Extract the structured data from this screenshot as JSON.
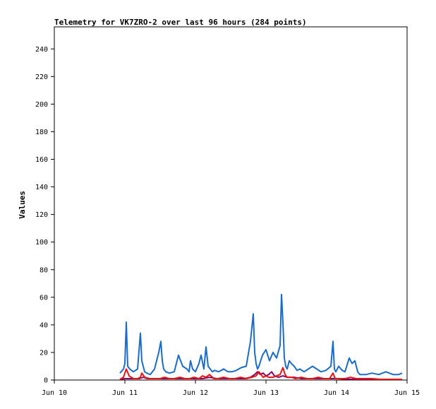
{
  "chart_data": {
    "type": "line",
    "title": "Telemetry for VK7ZRO-2 over last 96 hours (284 points)",
    "xlabel": "",
    "ylabel": "Values",
    "x_ticks": [
      "Jun 10",
      "Jun 11",
      "Jun 12",
      "Jun 13",
      "Jun 14",
      "Jun 15"
    ],
    "xlim_days": [
      10,
      15
    ],
    "ylim": [
      0,
      256
    ],
    "y_ticks": [
      0,
      20,
      40,
      60,
      80,
      100,
      120,
      140,
      160,
      180,
      200,
      220,
      240
    ],
    "grid": false,
    "series": [
      {
        "color": "#1a6ccc",
        "x_days": [
          10.93,
          10.98,
          11.0,
          11.02,
          11.04,
          11.07,
          11.12,
          11.18,
          11.22,
          11.24,
          11.26,
          11.28,
          11.31,
          11.36,
          11.42,
          11.48,
          11.51,
          11.53,
          11.55,
          11.58,
          11.63,
          11.7,
          11.76,
          11.82,
          11.88,
          11.91,
          11.93,
          11.96,
          12.0,
          12.05,
          12.08,
          12.12,
          12.15,
          12.18,
          12.21,
          12.24,
          12.27,
          12.33,
          12.4,
          12.46,
          12.52,
          12.58,
          12.65,
          12.72,
          12.78,
          12.82,
          12.84,
          12.86,
          12.88,
          12.9,
          12.95,
          13.0,
          13.05,
          13.1,
          13.15,
          13.2,
          13.22,
          13.24,
          13.26,
          13.28,
          13.3,
          13.33,
          13.36,
          13.4,
          13.44,
          13.48,
          13.54,
          13.6,
          13.66,
          13.72,
          13.78,
          13.85,
          13.92,
          13.95,
          13.96,
          13.97,
          13.99,
          14.03,
          14.08,
          14.12,
          14.18,
          14.22,
          14.26,
          14.3,
          14.33,
          14.36,
          14.42,
          14.5,
          14.6,
          14.7,
          14.8,
          14.88,
          14.93
        ],
        "values": [
          5,
          8,
          12,
          42,
          10,
          8,
          6,
          8,
          34,
          14,
          10,
          6,
          5,
          4,
          8,
          20,
          28,
          14,
          8,
          6,
          5,
          6,
          18,
          10,
          8,
          6,
          14,
          8,
          6,
          12,
          18,
          8,
          24,
          10,
          8,
          6,
          7,
          6,
          8,
          6,
          6,
          7,
          9,
          10,
          28,
          48,
          20,
          12,
          8,
          10,
          18,
          22,
          14,
          20,
          16,
          25,
          62,
          42,
          16,
          10,
          8,
          14,
          12,
          10,
          7,
          8,
          6,
          8,
          10,
          8,
          6,
          7,
          10,
          28,
          18,
          8,
          6,
          10,
          7,
          6,
          16,
          12,
          14,
          6,
          4,
          4,
          4,
          5,
          4,
          6,
          4,
          4,
          5
        ]
      },
      {
        "color": "#ee1111",
        "x_days": [
          10.93,
          10.98,
          11.0,
          11.02,
          11.06,
          11.12,
          11.18,
          11.22,
          11.24,
          11.28,
          11.35,
          11.42,
          11.5,
          11.56,
          11.63,
          11.7,
          11.78,
          11.85,
          11.92,
          11.98,
          12.05,
          12.1,
          12.15,
          12.2,
          12.26,
          12.32,
          12.4,
          12.48,
          12.56,
          12.64,
          12.72,
          12.8,
          12.86,
          12.9,
          12.96,
          13.0,
          13.04,
          13.1,
          13.15,
          13.2,
          13.24,
          13.27,
          13.3,
          13.36,
          13.42,
          13.5,
          13.58,
          13.66,
          13.74,
          13.82,
          13.9,
          13.95,
          13.98,
          14.05,
          14.12,
          14.2,
          14.28,
          14.38,
          14.5,
          14.62,
          14.75,
          14.88,
          14.93
        ],
        "values": [
          0.5,
          2,
          5,
          8,
          3,
          1,
          1,
          2,
          5,
          2,
          1,
          1,
          1,
          2,
          1,
          1,
          2,
          1,
          1,
          2,
          1,
          3,
          2,
          4,
          1,
          1,
          2,
          1,
          1,
          2,
          1,
          2,
          3,
          6,
          2,
          3,
          2,
          2,
          3,
          4,
          9,
          4,
          2,
          2,
          1,
          2,
          1,
          1,
          2,
          1,
          1,
          5,
          1,
          1,
          1,
          2,
          1,
          1,
          1,
          0.5,
          0.5,
          0.5,
          0.5
        ]
      },
      {
        "color": "#880066",
        "x_days": [
          10.93,
          11.0,
          11.05,
          11.1,
          11.15,
          11.2,
          11.26,
          11.32,
          11.4,
          11.5,
          11.6,
          11.7,
          11.8,
          11.9,
          12.0,
          12.1,
          12.2,
          12.3,
          12.4,
          12.5,
          12.6,
          12.7,
          12.78,
          12.84,
          12.88,
          12.92,
          12.96,
          13.0,
          13.04,
          13.08,
          13.12,
          13.18,
          13.24,
          13.3,
          13.4,
          13.5,
          13.6,
          13.7,
          13.8,
          13.9,
          14.0,
          14.2,
          14.4,
          14.6,
          14.8,
          14.93
        ],
        "values": [
          0.5,
          1,
          1,
          1,
          1,
          1,
          2,
          1,
          1,
          1,
          1,
          1,
          1,
          1,
          1,
          1,
          2,
          1,
          1,
          1,
          1,
          1,
          2,
          4,
          6,
          4,
          5,
          3,
          4,
          6,
          3,
          2,
          3,
          2,
          2,
          1,
          1,
          1,
          1,
          1,
          1,
          0.5,
          0.5,
          0.5,
          0.5,
          0.5
        ]
      }
    ]
  }
}
